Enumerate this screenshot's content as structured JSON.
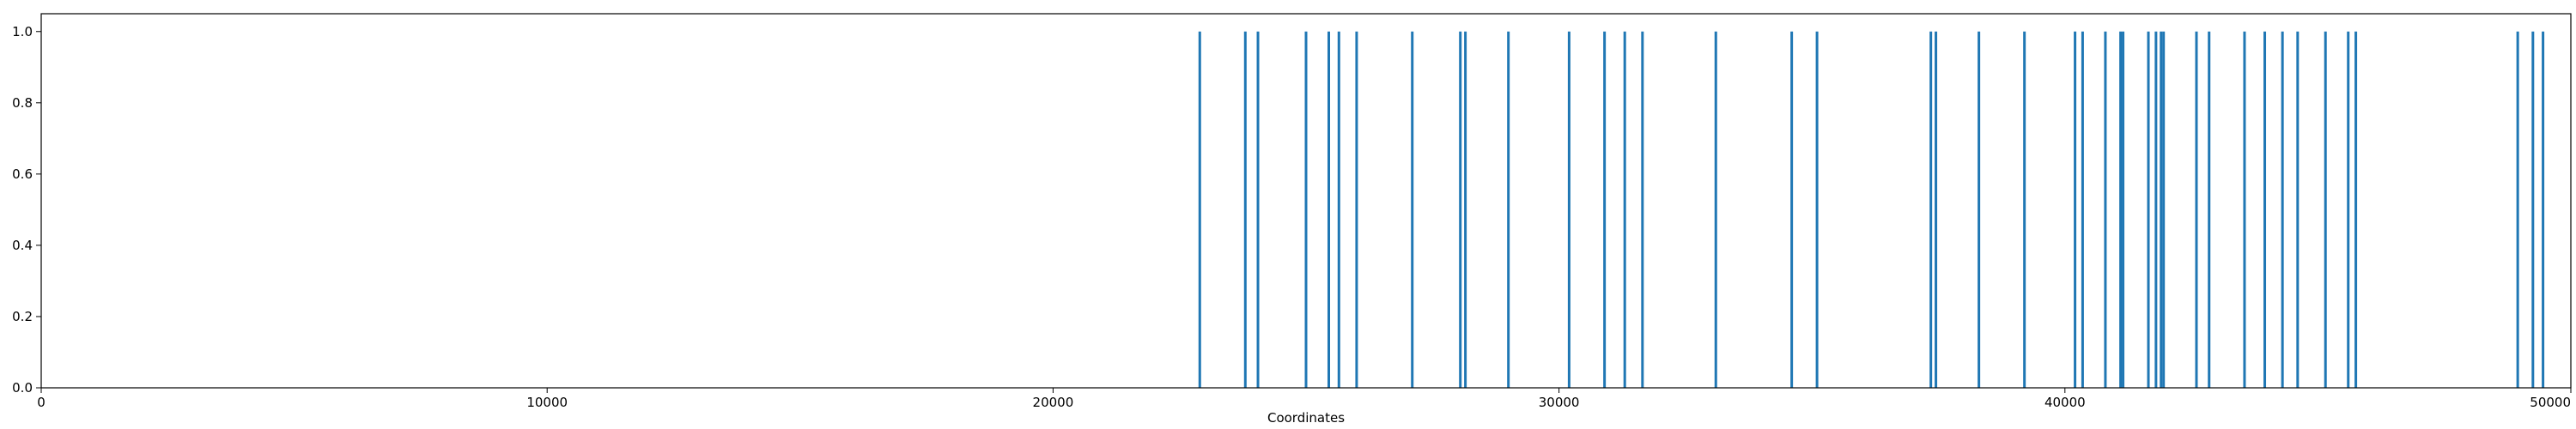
{
  "chart_data": {
    "type": "bar",
    "title": "",
    "xlabel": "Coordinates",
    "ylabel": "",
    "xlim": [
      0,
      50000
    ],
    "ylim": [
      0,
      1.05
    ],
    "grid": false,
    "bar_color": "#1f77b4",
    "bar_height": 1.0,
    "x": [
      22900,
      23800,
      24050,
      25000,
      25450,
      25650,
      26000,
      27100,
      28050,
      28150,
      29000,
      30200,
      30900,
      31300,
      31650,
      33100,
      34600,
      35100,
      37350,
      37450,
      38300,
      39200,
      40200,
      40350,
      40800,
      41100,
      41150,
      41650,
      41800,
      41900,
      41950,
      42600,
      42850,
      43550,
      43950,
      44300,
      44600,
      45150,
      45600,
      45750,
      48950,
      49250,
      49450
    ],
    "xticks": [
      0,
      10000,
      20000,
      30000,
      40000,
      50000
    ],
    "xtick_labels": [
      "0",
      "10000",
      "20000",
      "30000",
      "40000",
      "50000"
    ],
    "yticks": [
      0.0,
      0.2,
      0.4,
      0.6,
      0.8,
      1.0
    ],
    "ytick_labels": [
      "0.0",
      "0.2",
      "0.4",
      "0.6",
      "0.8",
      "1.0"
    ]
  }
}
